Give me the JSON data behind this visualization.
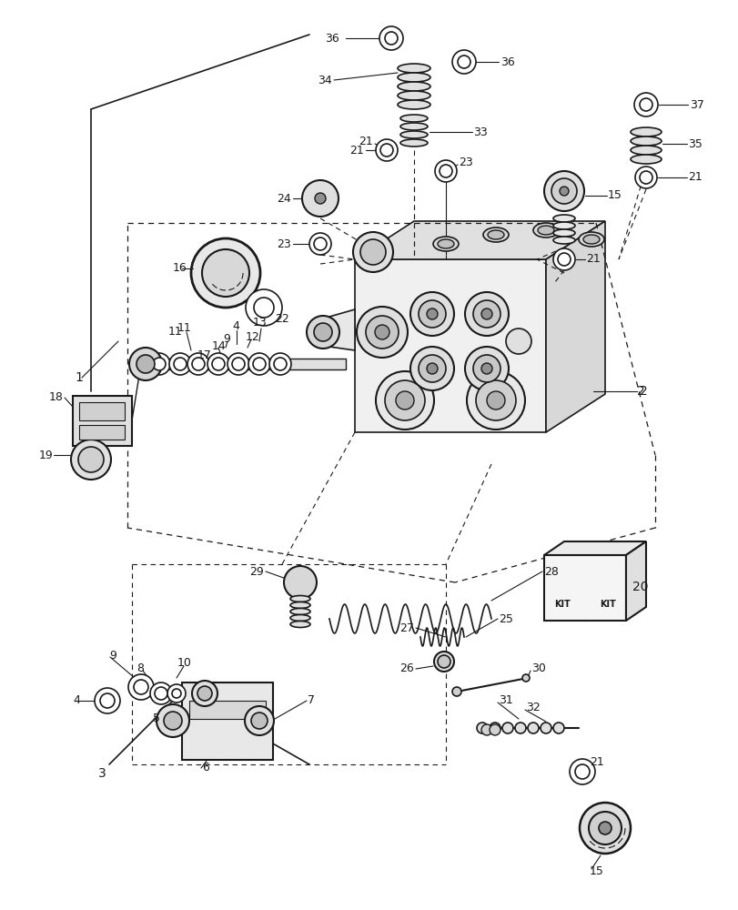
{
  "background_color": "#ffffff",
  "line_color": "#1a1a1a",
  "text_color": "#1a1a1a",
  "fig_width": 8.12,
  "fig_height": 10.0,
  "dpi": 100
}
